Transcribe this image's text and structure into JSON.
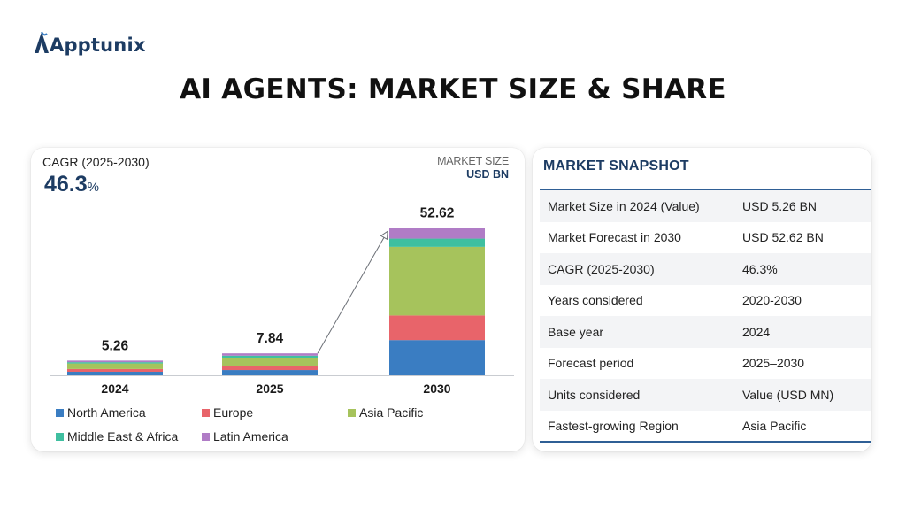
{
  "brand": {
    "name": "Apptunix",
    "color": "#1d3c63"
  },
  "title": "AI AGENTS: MARKET SIZE & SHARE",
  "chart_panel": {
    "cagr_label": "CAGR (2025-2030)",
    "cagr_value": "46.3",
    "cagr_suffix": "%",
    "market_size_label": "MARKET SIZE",
    "market_size_unit": "USD BN"
  },
  "chart_data": {
    "type": "bar",
    "stacked": true,
    "categories": [
      "2024",
      "2025",
      "2030"
    ],
    "totals": [
      5.26,
      7.84,
      52.62
    ],
    "total_labels": [
      "5.26",
      "7.84",
      "52.62"
    ],
    "series": [
      {
        "name": "North America",
        "color": "#3a7dc2",
        "values": [
          1.26,
          1.88,
          12.58
        ]
      },
      {
        "name": "Europe",
        "color": "#e8646a",
        "values": [
          0.98,
          1.45,
          8.77
        ]
      },
      {
        "name": "Asia Pacific",
        "color": "#a6c35c",
        "values": [
          1.99,
          2.99,
          24.48
        ]
      },
      {
        "name": "Middle East & Africa",
        "color": "#3fbfa0",
        "values": [
          0.46,
          0.69,
          2.94
        ]
      },
      {
        "name": "Latin America",
        "color": "#b07cc6",
        "values": [
          0.57,
          0.83,
          3.85
        ]
      }
    ],
    "ylim": [
      0,
      60
    ],
    "grid": false,
    "legend_position": "bottom",
    "trend_arrow": {
      "from": "2025",
      "to": "2030"
    }
  },
  "snapshot": {
    "title": "MARKET SNAPSHOT",
    "rows": [
      {
        "key": "Market Size in 2024 (Value)",
        "value": "USD 5.26 BN"
      },
      {
        "key": "Market Forecast in 2030",
        "value": "USD 52.62 BN"
      },
      {
        "key": "CAGR (2025-2030)",
        "value": "46.3%"
      },
      {
        "key": "Years considered",
        "value": "2020-2030"
      },
      {
        "key": "Base year",
        "value": "2024"
      },
      {
        "key": "Forecast period",
        "value": "2025–2030"
      },
      {
        "key": "Units considered",
        "value": "Value (USD MN)"
      },
      {
        "key": "Fastest-growing Region",
        "value": "Asia Pacific"
      }
    ]
  }
}
